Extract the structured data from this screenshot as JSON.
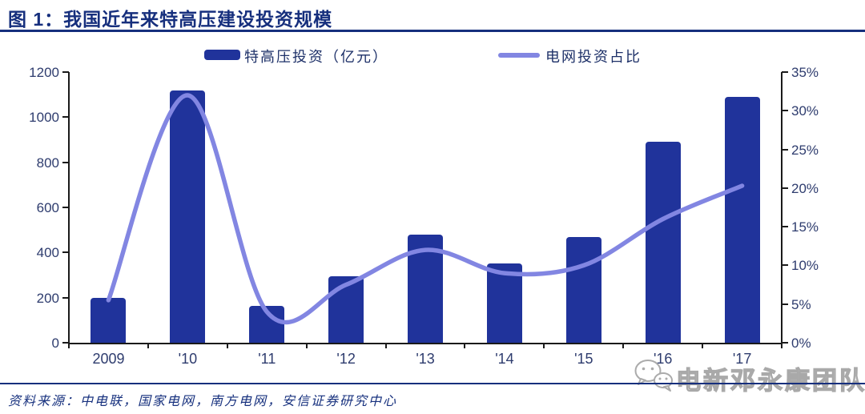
{
  "title": "图 1：我国近年来特高压建设投资规模",
  "legend": {
    "bar_label": "特高压投资（亿元）",
    "line_label": "电网投资占比"
  },
  "source": "资料来源：中电联，国家电网，南方电网，安信证券研究中心",
  "watermark": {
    "icon": "wechat-icon",
    "text": "电新邓永康团队"
  },
  "colors": {
    "bar": "#20339b",
    "line": "#8286e2",
    "navy": "#162f7d",
    "tick_label": "#2e3c6e",
    "axis": "#1a1a1a",
    "watermark_gray": "#a9a9a9"
  },
  "chart_data": {
    "type": "bar",
    "subtype": "combo-bar-line",
    "title": "图 1：我国近年来特高压建设投资规模",
    "categories": [
      "2009",
      "'10",
      "'11",
      "'12",
      "'13",
      "'14",
      "'15",
      "'16",
      "'17"
    ],
    "series": [
      {
        "name": "特高压投资（亿元）",
        "type": "bar",
        "y_axis": "left",
        "values": [
          200,
          1120,
          165,
          295,
          480,
          350,
          470,
          890,
          1090
        ]
      },
      {
        "name": "电网投资占比",
        "type": "line",
        "y_axis": "right",
        "values": [
          5.5,
          32,
          4,
          7.5,
          12,
          9,
          10,
          16,
          20.3
        ]
      }
    ],
    "left_axis": {
      "min": 0,
      "max": 1200,
      "step": 200,
      "ticks": [
        "0",
        "200",
        "400",
        "600",
        "800",
        "1000",
        "1200"
      ]
    },
    "right_axis": {
      "min": 0,
      "max": 35,
      "step": 5,
      "unit": "%",
      "ticks": [
        "0%",
        "5%",
        "10%",
        "15%",
        "20%",
        "25%",
        "30%",
        "35%"
      ]
    },
    "grid": false,
    "legend_position": "top-center",
    "smooth_line": true
  }
}
